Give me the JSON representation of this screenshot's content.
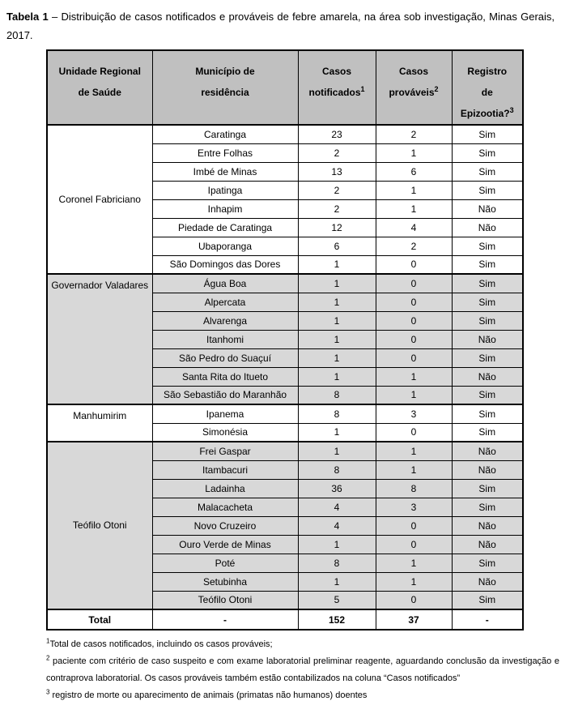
{
  "title": {
    "label": "Tabela 1",
    "text": " – Distribuição de casos notificados e prováveis de febre amarela, na área sob investigação, Minas Gerais, 2017."
  },
  "table": {
    "columns": [
      {
        "lines": [
          "Unidade Regional",
          "de Saúde"
        ],
        "sup": ""
      },
      {
        "lines": [
          "Município de",
          "residência"
        ],
        "sup": ""
      },
      {
        "lines": [
          "Casos",
          "notificados"
        ],
        "sup": "1"
      },
      {
        "lines": [
          "Casos",
          "prováveis"
        ],
        "sup": "2"
      },
      {
        "lines": [
          "Registro",
          "de",
          "Epizootia?"
        ],
        "sup": "3"
      }
    ],
    "groups": [
      {
        "name": "Coronel Fabriciano",
        "shaded": false,
        "valign": "middle",
        "rows": [
          {
            "municipality": "Caratinga",
            "notified": "23",
            "probable": "2",
            "epizootic": "Sim"
          },
          {
            "municipality": "Entre Folhas",
            "notified": "2",
            "probable": "1",
            "epizootic": "Sim"
          },
          {
            "municipality": "Imbé de Minas",
            "notified": "13",
            "probable": "6",
            "epizootic": "Sim"
          },
          {
            "municipality": "Ipatinga",
            "notified": "2",
            "probable": "1",
            "epizootic": "Sim"
          },
          {
            "municipality": "Inhapim",
            "notified": "2",
            "probable": "1",
            "epizootic": "Não"
          },
          {
            "municipality": "Piedade de Caratinga",
            "notified": "12",
            "probable": "4",
            "epizootic": "Não"
          },
          {
            "municipality": "Ubaporanga",
            "notified": "6",
            "probable": "2",
            "epizootic": "Sim"
          },
          {
            "municipality": "São Domingos das Dores",
            "notified": "1",
            "probable": "0",
            "epizootic": "Sim"
          }
        ]
      },
      {
        "name": "Governador Valadares",
        "shaded": true,
        "valign": "top",
        "rows": [
          {
            "municipality": "Água Boa",
            "notified": "1",
            "probable": "0",
            "epizootic": "Sim"
          },
          {
            "municipality": "Alpercata",
            "notified": "1",
            "probable": "0",
            "epizootic": "Sim"
          },
          {
            "municipality": "Alvarenga",
            "notified": "1",
            "probable": "0",
            "epizootic": "Sim"
          },
          {
            "municipality": "Itanhomi",
            "notified": "1",
            "probable": "0",
            "epizootic": "Não"
          },
          {
            "municipality": "São Pedro do Suaçuí",
            "notified": "1",
            "probable": "0",
            "epizootic": "Sim"
          },
          {
            "municipality": "Santa Rita do Itueto",
            "notified": "1",
            "probable": "1",
            "epizootic": "Não"
          },
          {
            "municipality": "São Sebastião do Maranhão",
            "notified": "8",
            "probable": "1",
            "epizootic": "Sim"
          }
        ]
      },
      {
        "name": "Manhumirim",
        "shaded": false,
        "valign": "top",
        "rows": [
          {
            "municipality": "Ipanema",
            "notified": "8",
            "probable": "3",
            "epizootic": "Sim"
          },
          {
            "municipality": "Simonésia",
            "notified": "1",
            "probable": "0",
            "epizootic": "Sim"
          }
        ]
      },
      {
        "name": "Teófilo Otoni",
        "shaded": true,
        "valign": "middle",
        "rows": [
          {
            "municipality": "Frei Gaspar",
            "notified": "1",
            "probable": "1",
            "epizootic": "Não"
          },
          {
            "municipality": "Itambacuri",
            "notified": "8",
            "probable": "1",
            "epizootic": "Não"
          },
          {
            "municipality": "Ladainha",
            "notified": "36",
            "probable": "8",
            "epizootic": "Sim"
          },
          {
            "municipality": "Malacacheta",
            "notified": "4",
            "probable": "3",
            "epizootic": "Sim"
          },
          {
            "municipality": "Novo Cruzeiro",
            "notified": "4",
            "probable": "0",
            "epizootic": "Não"
          },
          {
            "municipality": "Ouro Verde de Minas",
            "notified": "1",
            "probable": "0",
            "epizootic": "Não"
          },
          {
            "municipality": "Poté",
            "notified": "8",
            "probable": "1",
            "epizootic": "Sim"
          },
          {
            "municipality": "Setubinha",
            "notified": "1",
            "probable": "1",
            "epizootic": "Não"
          },
          {
            "municipality": "Teófilo Otoni",
            "notified": "5",
            "probable": "0",
            "epizootic": "Sim"
          }
        ]
      }
    ],
    "total": {
      "label": "Total",
      "municipality": "-",
      "notified": "152",
      "probable": "37",
      "epizootic": "-"
    }
  },
  "footnotes": [
    {
      "sup": "1",
      "text": "Total de casos notificados, incluindo os casos prováveis;"
    },
    {
      "sup": "2",
      "text": " paciente com critério de caso suspeito e com exame laboratorial preliminar reagente, aguardando conclusão da investigação e contraprova laboratorial. Os casos prováveis também estão contabilizados na coluna “Casos notificados”"
    },
    {
      "sup": "3",
      "text": " registro de morte ou aparecimento de animais (primatas não humanos) doentes"
    }
  ],
  "colors": {
    "header_bg": "#c0c0c0",
    "group_shade_bg": "#d8d8d8",
    "border": "#000000"
  }
}
